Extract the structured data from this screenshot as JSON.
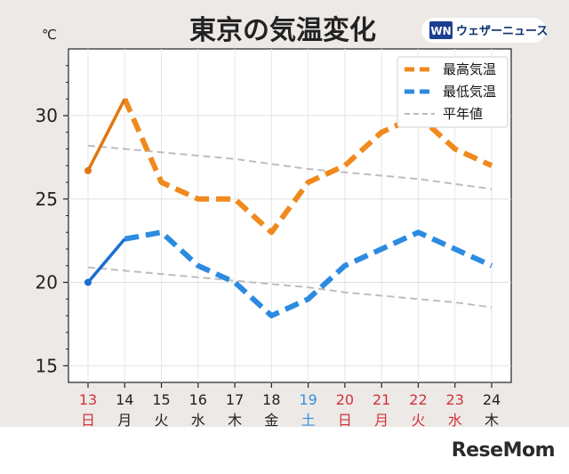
{
  "chart_data": {
    "type": "line",
    "title": "東京の気温変化",
    "unit": "℃",
    "x": [
      "13",
      "14",
      "15",
      "16",
      "17",
      "18",
      "19",
      "20",
      "21",
      "22",
      "23",
      "24"
    ],
    "weekdays": [
      "日",
      "月",
      "火",
      "水",
      "木",
      "金",
      "土",
      "日",
      "月",
      "火",
      "水",
      "木"
    ],
    "date_colors": [
      "#d2323c",
      "#222222",
      "#222222",
      "#222222",
      "#222222",
      "#222222",
      "#3a8fd8",
      "#d2323c",
      "#d2323c",
      "#d2323c",
      "#d2323c",
      "#222222"
    ],
    "ylim": [
      14,
      34
    ],
    "yticks": [
      15,
      20,
      25,
      30
    ],
    "grid": true,
    "legend_position": "top-right",
    "series": [
      {
        "name": "最高気温",
        "color": "#f08a1c",
        "actual_color": "#e07712",
        "actual_count": 2,
        "values": [
          26.7,
          31.0,
          26.0,
          25.0,
          25.0,
          23.0,
          26.0,
          27.0,
          29.0,
          30.0,
          28.0,
          27.0
        ]
      },
      {
        "name": "最低気温",
        "color": "#2c8be0",
        "actual_color": "#1a6fd0",
        "actual_count": 2,
        "values": [
          20.0,
          22.6,
          23.0,
          21.0,
          20.0,
          18.0,
          19.0,
          21.0,
          22.0,
          23.0,
          22.0,
          21.0
        ]
      },
      {
        "name": "平年値",
        "color": "#bdbdbd",
        "style": "dashed-thin",
        "values": [
          28.2,
          28.0,
          27.8,
          27.6,
          27.4,
          27.1,
          26.8,
          26.6,
          26.4,
          26.2,
          25.9,
          25.6
        ]
      },
      {
        "name": "平年値-low",
        "legend": false,
        "color": "#bdbdbd",
        "style": "dashed-thin",
        "values": [
          20.9,
          20.7,
          20.5,
          20.3,
          20.1,
          19.9,
          19.7,
          19.4,
          19.2,
          19.0,
          18.8,
          18.5
        ]
      }
    ]
  },
  "branding": {
    "provider_logo_text": "ウェザーニュース",
    "provider_logo_mark": "WN",
    "site_logo": "ReseMom"
  }
}
